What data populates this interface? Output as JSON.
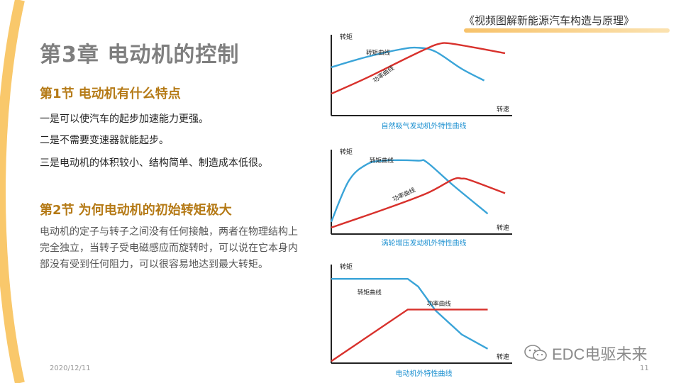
{
  "book_title": "《视频图解新能源汽车构造与原理》",
  "chapter_title": "第3章   电动机的控制",
  "section1": {
    "title": "第1节   电动机有什么特点",
    "points": [
      "一是可以使汽车的起步加速能力更强。",
      "二是不需要变速器就能起步。",
      "三是电动机的体积较小、结构简单、制造成本低很。"
    ]
  },
  "section2": {
    "title": "第2节 为何电动机的初始转矩极大",
    "paragraph": "电动机的定子与转子之间没有任何接触，两者在物理结构上完全独立，当转子受电磁感应而旋转时，可以说在它本身内部没有受到任何阻力，可以很容易地达到最大转矩。"
  },
  "footer": {
    "date": "2020/12/11",
    "page_number": "11"
  },
  "watermark": "EDC电驱未来",
  "colors": {
    "accent": "#b57a16",
    "torque": "#3aa4d8",
    "power": "#d8312c",
    "caption": "#1a8fd0",
    "arc": "#f9c86b"
  },
  "chart_data": [
    {
      "type": "line",
      "caption": "自然吸气发动机外特性曲线",
      "xlabel": "转速",
      "ylabel": "转矩",
      "series": [
        {
          "name": "转矩曲线",
          "x": [
            0,
            0.2,
            0.4,
            0.5,
            0.6,
            0.75,
            0.88
          ],
          "y": [
            0.62,
            0.75,
            0.85,
            0.87,
            0.82,
            0.6,
            0.45
          ]
        },
        {
          "name": "功率曲线",
          "x": [
            0,
            0.2,
            0.4,
            0.55,
            0.62,
            0.7,
            1.0
          ],
          "y": [
            0.28,
            0.48,
            0.7,
            0.86,
            0.92,
            0.92,
            0.8
          ]
        }
      ]
    },
    {
      "type": "line",
      "caption": "涡轮增压发动机外特性曲线",
      "xlabel": "转速",
      "ylabel": "转矩",
      "series": [
        {
          "name": "转矩曲线",
          "x": [
            0,
            0.1,
            0.2,
            0.3,
            0.5,
            0.55,
            0.7,
            0.9
          ],
          "y": [
            0.15,
            0.65,
            0.85,
            0.9,
            0.9,
            0.88,
            0.6,
            0.25
          ]
        },
        {
          "name": "功率曲线",
          "x": [
            0,
            0.3,
            0.55,
            0.7,
            0.75,
            0.8,
            1.0
          ],
          "y": [
            0.08,
            0.3,
            0.5,
            0.67,
            0.68,
            0.66,
            0.5
          ]
        }
      ]
    },
    {
      "type": "line",
      "caption": "电动机外特性曲线",
      "xlabel": "转速",
      "ylabel": "转矩",
      "series": [
        {
          "name": "转矩曲线",
          "x": [
            0,
            0.44,
            0.5,
            0.6,
            0.75,
            0.9
          ],
          "y": [
            0.88,
            0.88,
            0.8,
            0.55,
            0.3,
            0.15
          ]
        },
        {
          "name": "功率曲线",
          "x": [
            0,
            0.44,
            0.9
          ],
          "y": [
            0.02,
            0.56,
            0.56
          ]
        }
      ]
    }
  ]
}
